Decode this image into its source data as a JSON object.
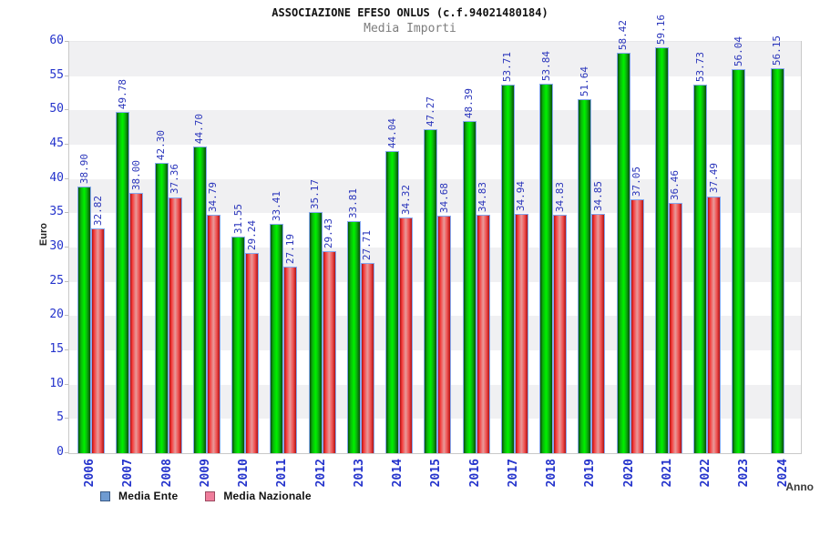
{
  "header": {
    "title": "ASSOCIAZIONE EFESO ONLUS (c.f.94021480184)",
    "subtitle": "Media Importi"
  },
  "axes": {
    "y_label": "Euro",
    "x_label": "Anno",
    "y_ticks": [
      0,
      5,
      10,
      15,
      20,
      25,
      30,
      35,
      40,
      45,
      50,
      55,
      60
    ]
  },
  "legend": {
    "items": [
      {
        "label": "Media Ente",
        "swatch_fill": "#6f9bd1",
        "swatch_border": "#3a5a86"
      },
      {
        "label": "Media Nazionale",
        "swatch_fill": "#ef7d9b",
        "swatch_border": "#9a4a60"
      }
    ]
  },
  "colors": {
    "tick_text_blue": "#2433cc",
    "value_label_blue": "#2a35bb",
    "green_bar_main": "#00e800",
    "green_bar_edge": "#074f07",
    "red_bar_main": "#e89a9a",
    "red_bar_edge": "#b01212",
    "bar_outline": "#85a8ee",
    "band_gray": "#f0f0f2",
    "band_white": "#ffffff",
    "plot_border": "#c9c9c9",
    "subtitle_gray": "#7d7d7d"
  },
  "chart_data": {
    "type": "bar",
    "title": "ASSOCIAZIONE EFESO ONLUS (c.f.94021480184)",
    "subtitle": "Media Importi",
    "xlabel": "Anno",
    "ylabel": "Euro",
    "ylim": [
      0,
      60
    ],
    "grid": "alternating-horizontal-bands",
    "legend_position": "bottom-left",
    "value_label_format": "2-decimals, rotated 90deg, blue",
    "categories": [
      "2006",
      "2007",
      "2008",
      "2009",
      "2010",
      "2011",
      "2012",
      "2013",
      "2014",
      "2015",
      "2016",
      "2017",
      "2018",
      "2019",
      "2020",
      "2021",
      "2022",
      "2023",
      "2024"
    ],
    "series": [
      {
        "name": "Media Ente",
        "bar_color": "green",
        "values": [
          38.9,
          49.78,
          42.3,
          44.7,
          31.55,
          33.41,
          35.17,
          33.81,
          44.04,
          47.27,
          48.39,
          53.71,
          53.84,
          51.64,
          58.42,
          59.16,
          53.73,
          56.04,
          56.15
        ]
      },
      {
        "name": "Media Nazionale",
        "bar_color": "red",
        "values": [
          32.82,
          38.0,
          37.36,
          34.79,
          29.24,
          27.19,
          29.43,
          27.71,
          34.32,
          34.68,
          34.83,
          34.94,
          34.83,
          34.85,
          37.05,
          36.46,
          37.49,
          null,
          null
        ]
      }
    ]
  }
}
